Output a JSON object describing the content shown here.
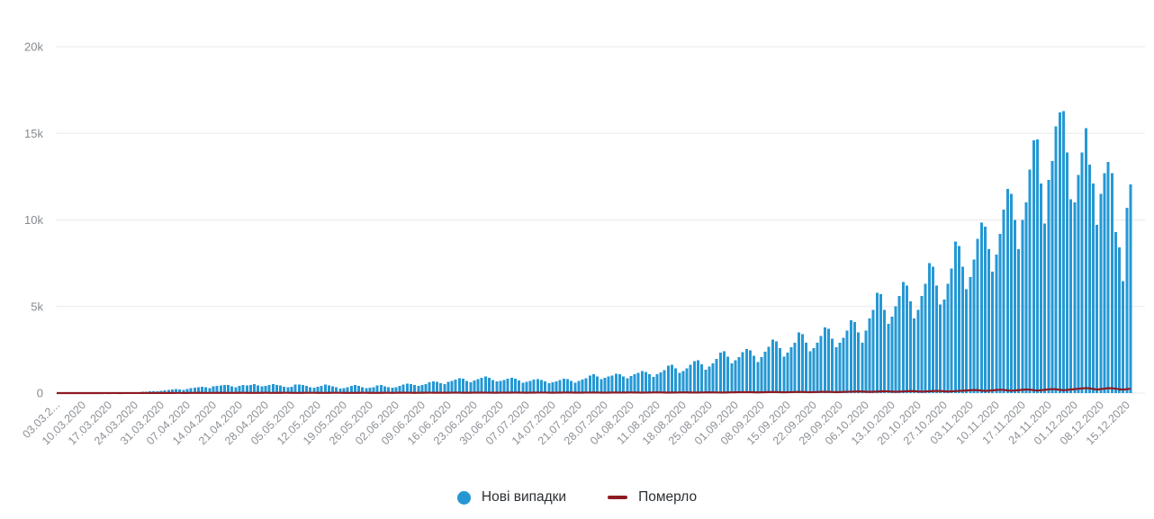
{
  "chart": {
    "background": "#ffffff",
    "bar_color": "#2598d4",
    "line_color": "#8e1a22",
    "grid_color": "#e8eaec",
    "axis_label_color": "#8d9197"
  },
  "chart_data": {
    "type": "bar",
    "title": "",
    "xlabel": "",
    "ylabel": "",
    "ylim": [
      0,
      20000
    ],
    "grid": true,
    "legend_position": "bottom",
    "days_per_tick": 7,
    "start_date": "03.03.2020",
    "y_tick_labels": [
      "20k",
      "15k",
      "10k",
      "5k",
      "0"
    ],
    "y_tick_values": [
      20000,
      15000,
      10000,
      5000,
      0
    ],
    "x_tick_labels": [
      "03.03.2...",
      "10.03.2020",
      "17.03.2020",
      "24.03.2020",
      "31.03.2020",
      "07.04.2020",
      "14.04.2020",
      "21.04.2020",
      "28.04.2020",
      "05.05.2020",
      "12.05.2020",
      "19.05.2020",
      "26.05.2020",
      "02.06.2020",
      "09.06.2020",
      "16.06.2020",
      "23.06.2020",
      "30.06.2020",
      "07.07.2020",
      "14.07.2020",
      "21.07.2020",
      "28.07.2020",
      "04.08.2020",
      "11.08.2020",
      "18.08.2020",
      "25.08.2020",
      "01.09.2020",
      "08.09.2020",
      "15.09.2020",
      "22.09.2020",
      "29.09.2020",
      "06.10.2020",
      "13.10.2020",
      "20.10.2020",
      "27.10.2020",
      "03.11.2020",
      "10.11.2020",
      "17.11.2020",
      "24.11.2020",
      "01.12.2020",
      "08.12.2020",
      "15.12.2020"
    ],
    "series": [
      {
        "name": "Нові випадки",
        "type": "bar",
        "color": "#2598d4",
        "values": [
          1,
          0,
          1,
          0,
          1,
          2,
          1,
          0,
          2,
          1,
          3,
          2,
          4,
          5,
          7,
          9,
          14,
          18,
          26,
          32,
          38,
          45,
          57,
          70,
          84,
          97,
          112,
          105,
          135,
          150,
          170,
          205,
          235,
          210,
          180,
          245,
          280,
          310,
          345,
          370,
          330,
          290,
          392,
          415,
          445,
          475,
          455,
          385,
          345,
          420,
          460,
          435,
          478,
          510,
          440,
          390,
          405,
          455,
          525,
          480,
          430,
          370,
          325,
          370,
          490,
          505,
          470,
          415,
          340,
          310,
          375,
          425,
          485,
          450,
          395,
          330,
          270,
          295,
          345,
          405,
          455,
          425,
          340,
          280,
          310,
          350,
          430,
          460,
          395,
          345,
          320,
          350,
          410,
          490,
          555,
          520,
          465,
          420,
          465,
          525,
          620,
          685,
          650,
          580,
          530,
          645,
          705,
          785,
          845,
          820,
          705,
          625,
          735,
          805,
          885,
          950,
          880,
          755,
          665,
          705,
          755,
          820,
          885,
          830,
          725,
          595,
          645,
          705,
          785,
          815,
          765,
          685,
          565,
          625,
          685,
          755,
          825,
          805,
          695,
          585,
          705,
          785,
          865,
          1005,
          1090,
          955,
          815,
          885,
          955,
          1025,
          1120,
          1095,
          965,
          845,
          995,
          1080,
          1170,
          1275,
          1230,
          1085,
          925,
          1095,
          1200,
          1320,
          1590,
          1640,
          1435,
          1175,
          1285,
          1430,
          1625,
          1840,
          1890,
          1655,
          1355,
          1545,
          1720,
          1975,
          2330,
          2420,
          2110,
          1715,
          1895,
          2090,
          2360,
          2550,
          2480,
          2155,
          1805,
          2080,
          2390,
          2680,
          3100,
          3000,
          2605,
          2105,
          2325,
          2655,
          2905,
          3500,
          3400,
          2905,
          2405,
          2605,
          2905,
          3305,
          3805,
          3705,
          3155,
          2655,
          2905,
          3205,
          3605,
          4205,
          4105,
          3505,
          2905,
          3605,
          4305,
          4805,
          5805,
          5705,
          4805,
          4005,
          4405,
          5005,
          5605,
          6405,
          6205,
          5305,
          4305,
          4805,
          5605,
          6305,
          7505,
          7305,
          6205,
          5105,
          5405,
          6305,
          7205,
          8750,
          8500,
          7305,
          6005,
          6705,
          7705,
          8905,
          9850,
          9600,
          8305,
          7005,
          8005,
          9205,
          10605,
          11800,
          11505,
          10005,
          8305,
          10005,
          11005,
          12905,
          14600,
          14650,
          12105,
          9805,
          12305,
          13405,
          15400,
          16218,
          16294,
          13905,
          11205,
          11005,
          12605,
          13905,
          15305,
          13205,
          12105,
          9705,
          11505,
          12705,
          13350,
          12700,
          9305,
          8405,
          6455,
          10705,
          12055
        ]
      },
      {
        "name": "Померло",
        "type": "line",
        "color": "#8e1a22",
        "values": [
          0,
          0,
          0,
          0,
          0,
          0,
          0,
          0,
          0,
          1,
          0,
          1,
          1,
          2,
          1,
          2,
          3,
          1,
          2,
          3,
          2,
          3,
          4,
          3,
          5,
          4,
          5,
          6,
          5,
          6,
          7,
          8,
          9,
          10,
          8,
          7,
          9,
          11,
          12,
          13,
          10,
          9,
          11,
          13,
          14,
          12,
          10,
          9,
          12,
          14,
          15,
          13,
          11,
          10,
          12,
          14,
          15,
          13,
          11,
          12,
          14,
          16,
          15,
          13,
          11,
          10,
          13,
          15,
          17,
          16,
          14,
          12,
          11,
          13,
          15,
          17,
          16,
          14,
          12,
          10,
          12,
          14,
          16,
          15,
          13,
          11,
          10,
          13,
          15,
          16,
          14,
          16,
          18,
          20,
          19,
          16,
          14,
          17,
          19,
          21,
          23,
          21,
          18,
          16,
          19,
          21,
          24,
          26,
          24,
          21,
          18,
          20,
          23,
          25,
          27,
          25,
          22,
          19,
          21,
          24,
          22,
          25,
          27,
          29,
          27,
          23,
          20,
          23,
          26,
          28,
          30,
          28,
          24,
          21,
          24,
          26,
          29,
          31,
          29,
          25,
          22,
          25,
          28,
          30,
          32,
          30,
          26,
          23,
          26,
          29,
          31,
          28,
          31,
          34,
          36,
          34,
          29,
          25,
          29,
          32,
          35,
          38,
          36,
          31,
          27,
          31,
          34,
          37,
          40,
          38,
          33,
          28,
          32,
          36,
          39,
          42,
          40,
          35,
          30,
          34,
          38,
          41,
          44,
          48,
          52,
          56,
          53,
          46,
          40,
          46,
          51,
          57,
          62,
          59,
          51,
          44,
          50,
          56,
          63,
          69,
          65,
          56,
          48,
          55,
          62,
          70,
          76,
          72,
          62,
          53,
          60,
          68,
          74,
          81,
          88,
          95,
          90,
          78,
          67,
          77,
          86,
          96,
          105,
          100,
          86,
          74,
          85,
          95,
          106,
          116,
          110,
          95,
          81,
          93,
          105,
          117,
          128,
          121,
          104,
          89,
          102,
          115,
          127,
          138,
          150,
          163,
          177,
          168,
          144,
          123,
          141,
          157,
          174,
          191,
          181,
          156,
          133,
          152,
          170,
          189,
          208,
          197,
          170,
          145,
          166,
          188,
          210,
          231,
          219,
          188,
          161,
          184,
          207,
          226,
          246,
          268,
          289,
          274,
          236,
          202,
          231,
          257,
          285,
          276,
          256,
          219,
          198,
          226,
          251
        ]
      }
    ]
  }
}
